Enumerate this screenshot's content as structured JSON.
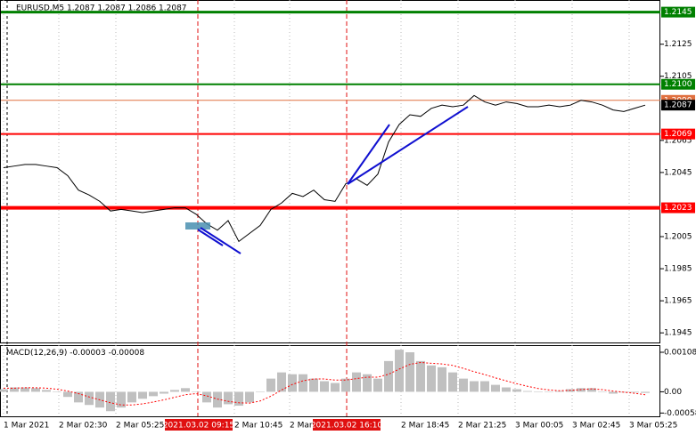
{
  "chart_data": {
    "type": "line",
    "title": "EURUSD,M5 1.2087 1.2087 1.2086 1.2087",
    "color": "#000000",
    "values": [
      1.2048,
      1.2049,
      1.205,
      1.205,
      1.2049,
      1.2048,
      1.2043,
      1.2034,
      1.2031,
      1.2027,
      1.2021,
      1.2022,
      1.2021,
      1.202,
      1.2021,
      1.2022,
      1.2023,
      1.2023,
      1.2019,
      1.2013,
      1.2009,
      1.2015,
      1.2002,
      1.2007,
      1.2012,
      1.2022,
      1.2026,
      1.2032,
      1.203,
      1.2034,
      1.2028,
      1.2027,
      1.2038,
      1.2041,
      1.2037,
      1.2044,
      1.2064,
      1.2075,
      1.2081,
      1.208,
      1.2085,
      1.2087,
      1.2086,
      1.2087,
      1.2093,
      1.2089,
      1.2087,
      1.2089,
      1.2088,
      1.2086,
      1.2086,
      1.2087,
      1.2086,
      1.2087,
      1.209,
      1.2089,
      1.2087,
      1.2084,
      1.2083,
      1.2085,
      1.2087
    ],
    "ylim": [
      1.1939,
      1.2152
    ],
    "yticks": [
      1.2125,
      1.2105,
      1.2065,
      1.2045,
      1.2005,
      1.1985,
      1.1965,
      1.1945
    ],
    "levels": [
      {
        "value": 1.2145,
        "color": "#008000",
        "width": 3
      },
      {
        "value": 1.21,
        "label": "1.2100",
        "color": "#008000",
        "width": 2
      },
      {
        "value": 1.209,
        "label": "1.2090",
        "color": "#e07040",
        "width": 1
      },
      {
        "value": 1.2069,
        "color": "#ff0000",
        "width": 2
      },
      {
        "value": 1.2023,
        "color": "#ff0000",
        "width": 4
      }
    ],
    "x_labels": [
      "1 Mar 2021",
      "2 Mar 02:30",
      "2 Mar 05:25",
      "2 Mar 10:45",
      "2 Mar",
      "2 Mar 18:45",
      "2 Mar 21:25",
      "3 Mar 00:05",
      "3 Mar 02:45",
      "3 Mar 05:25"
    ],
    "highlights": [
      {
        "label": "2021.03.02 09:15",
        "color": "#e01010"
      },
      {
        "label": "2021.03.02 16:10",
        "color": "#e01010"
      }
    ],
    "macd": {
      "label": "MACD(12,26,9)",
      "histogram_color": "#c0c0c0",
      "signal_color": "#ff0000",
      "histogram": [
        7e-05,
        0.00012,
        0.00012,
        0.0001,
        5e-05,
        0,
        -0.00014,
        -0.00029,
        -0.00036,
        -0.00043,
        -0.00053,
        -0.00043,
        -0.00029,
        -0.00019,
        -0.00012,
        -5e-05,
        5e-05,
        0.0001,
        0,
        -0.00029,
        -0.00043,
        -0.00034,
        -0.00038,
        -0.00029,
        0,
        0.00036,
        0.00053,
        0.00048,
        0.00048,
        0.00036,
        0.00029,
        0.00024,
        0.00036,
        0.00053,
        0.00048,
        0.00036,
        0.00084,
        0.00115,
        0.00108,
        0.00084,
        0.00072,
        0.00067,
        0.00053,
        0.00036,
        0.00029,
        0.00029,
        0.00019,
        0.00012,
        7e-05,
        2e-05,
        0,
        0,
        2e-05,
        7e-05,
        0.0001,
        0.0001,
        0,
        -5e-05,
        -2e-05,
        -2e-05,
        -3e-05
      ],
      "signal": [
        0.0001,
        0.0001,
        0.00011,
        0.00011,
        0.0001,
        7e-05,
        2e-05,
        -5e-05,
        -0.00014,
        -0.00022,
        -0.0003,
        -0.00036,
        -0.00036,
        -0.00033,
        -0.00028,
        -0.00022,
        -0.00015,
        -8e-05,
        -5e-05,
        -0.00011,
        -0.0002,
        -0.00026,
        -0.0003,
        -0.00031,
        -0.00025,
        -0.00012,
        5e-05,
        0.0002,
        0.0003,
        0.00035,
        0.00035,
        0.00032,
        0.00032,
        0.00036,
        0.0004,
        0.0004,
        0.00048,
        0.00062,
        0.00075,
        0.0008,
        0.00078,
        0.00076,
        0.00072,
        0.00064,
        0.00055,
        0.00047,
        0.00038,
        0.0003,
        0.00022,
        0.00015,
        9e-05,
        5e-05,
        3e-05,
        4e-05,
        6e-05,
        8e-05,
        6e-05,
        2e-05,
        -1e-05,
        -4e-05,
        -8e-05
      ],
      "ylim": [
        -0.00067,
        0.00125
      ],
      "yticks": [
        0.00108,
        {
          "value": 0,
          "label": "0.00"
        },
        -0.00058
      ]
    }
  }
}
